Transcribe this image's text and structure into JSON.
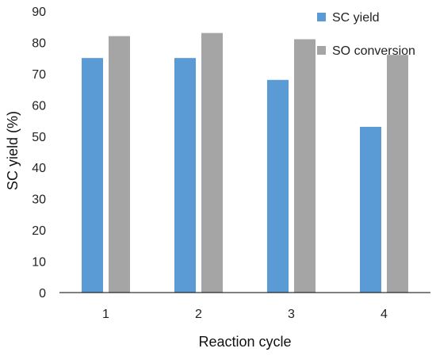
{
  "chart_data": {
    "type": "bar",
    "categories": [
      "1",
      "2",
      "3",
      "4"
    ],
    "series": [
      {
        "name": "SC yield",
        "values": [
          75,
          75,
          68,
          53
        ],
        "color": "#5b9bd5"
      },
      {
        "name": "SO conversion",
        "values": [
          82,
          83,
          81,
          76
        ],
        "color": "#a5a5a5"
      }
    ],
    "title": "",
    "xlabel": "Reaction cycle",
    "ylabel": "SC yield (%)",
    "ylim": [
      0,
      90
    ],
    "yticks": [
      0,
      10,
      20,
      30,
      40,
      50,
      60,
      70,
      80,
      90
    ],
    "grid": false,
    "legend_position": "top-right",
    "axis_color": "#000000"
  }
}
